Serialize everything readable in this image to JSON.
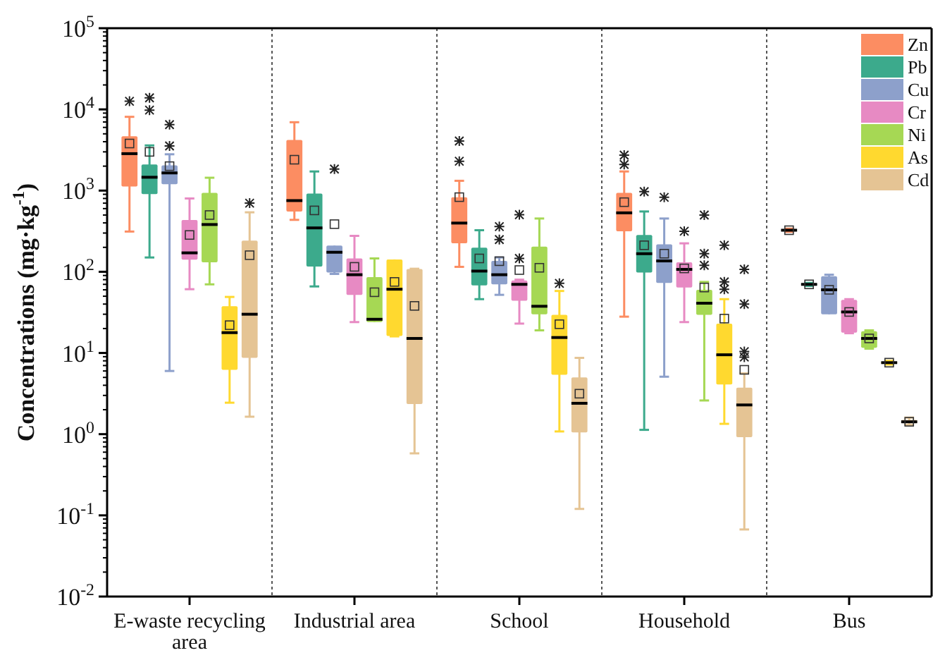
{
  "chart_data": {
    "type": "box",
    "ylabel": "Concentrations (mg·kg$^{-1}$)",
    "categories": [
      "E-waste recycling area",
      "Industrial area",
      "School",
      "Household",
      "Bus"
    ],
    "log": true,
    "ylim": [
      0.01,
      100000
    ],
    "yticks": [
      {
        "value": 0.01,
        "label": "10$^{-2}$"
      },
      {
        "value": 0.1,
        "label": "10$^{-1}$"
      },
      {
        "value": 1,
        "label": "10$^{0}$"
      },
      {
        "value": 10,
        "label": "10$^{1}$"
      },
      {
        "value": 100,
        "label": "10$^{2}$"
      },
      {
        "value": 1000,
        "label": "10$^{3}$"
      },
      {
        "value": 10000,
        "label": "10$^{4}$"
      },
      {
        "value": 100000,
        "label": "10$^{5}$"
      }
    ],
    "legend": "top right",
    "series": [
      {
        "name": "Zn",
        "color": "#fc8d62",
        "boxes": [
          {
            "low": 313,
            "q1": 1120,
            "median": 2850,
            "q3": 4660,
            "high": 8100,
            "mean": 3800,
            "outliers": [
              12600
            ]
          },
          {
            "low": 436,
            "q1": 553,
            "median": 753,
            "q3": 4200,
            "high": 6950,
            "mean": 2400
          },
          {
            "low": 115,
            "q1": 224,
            "median": 398,
            "q3": 826,
            "high": 1320,
            "mean": 830,
            "outliers": [
              2300,
              4080
            ]
          },
          {
            "low": 28,
            "q1": 316,
            "median": 532,
            "q3": 940,
            "high": 1720,
            "mean": 720,
            "outliers": [
              2100,
              2730
            ]
          },
          {
            "low": 310,
            "q1": 318,
            "median": 325,
            "q3": 332,
            "high": 340,
            "mean": 325
          }
        ]
      },
      {
        "name": "Pb",
        "color": "#3caa8c",
        "boxes": [
          {
            "low": 150,
            "q1": 905,
            "median": 1460,
            "q3": 2100,
            "high": 3600,
            "mean": 3000,
            "outliers": [
              9800,
              13900
            ]
          },
          {
            "low": 66,
            "q1": 116,
            "median": 347,
            "q3": 920,
            "high": 1720,
            "mean": 570
          },
          {
            "low": 46,
            "q1": 68,
            "median": 102,
            "q3": 198,
            "high": 325,
            "mean": 146
          },
          {
            "low": 1.13,
            "q1": 98,
            "median": 167,
            "q3": 284,
            "high": 553,
            "mean": 212,
            "outliers": [
              970
            ]
          },
          {
            "low": 67,
            "q1": 69,
            "median": 70,
            "q3": 71,
            "high": 73,
            "mean": 70
          }
        ]
      },
      {
        "name": "Cu",
        "color": "#8da0cb",
        "boxes": [
          {
            "low": 6,
            "q1": 1200,
            "median": 1650,
            "q3": 2050,
            "high": 2800,
            "mean": 2000,
            "outliers": [
              3550,
              6500
            ]
          },
          {
            "low": 94,
            "q1": 98,
            "median": 174,
            "q3": 210,
            "high": 210,
            "mean": 386,
            "outliers": [
              1840
            ]
          },
          {
            "low": 52,
            "q1": 70,
            "median": 92,
            "q3": 136,
            "high": 150,
            "mean": 135,
            "outliers": [
              249,
              360
            ]
          },
          {
            "low": 5.1,
            "q1": 73,
            "median": 136,
            "q3": 218,
            "high": 453,
            "mean": 167,
            "outliers": [
              826
            ]
          },
          {
            "low": 30,
            "q1": 30,
            "median": 60,
            "q3": 88,
            "high": 92,
            "mean": 60
          }
        ]
      },
      {
        "name": "Cr",
        "color": "#e78ac3",
        "boxes": [
          {
            "low": 61,
            "q1": 141,
            "median": 171,
            "q3": 435,
            "high": 800,
            "mean": 284
          },
          {
            "low": 24,
            "q1": 52,
            "median": 92,
            "q3": 146,
            "high": 277,
            "mean": 115
          },
          {
            "low": 23,
            "q1": 44,
            "median": 70,
            "q3": 78,
            "high": 80,
            "mean": 105,
            "outliers": [
              146,
              505
            ]
          },
          {
            "low": 24,
            "q1": 64,
            "median": 107,
            "q3": 131,
            "high": 224,
            "mean": 110,
            "outliers": [
              316
            ]
          },
          {
            "low": 17.5,
            "q1": 17.8,
            "median": 32,
            "q3": 45,
            "high": 46,
            "mean": 32
          }
        ]
      },
      {
        "name": "Ni",
        "color": "#a6d854",
        "boxes": [
          {
            "low": 70,
            "q1": 131,
            "median": 382,
            "q3": 940,
            "high": 1440,
            "mean": 500
          },
          {
            "low": 24,
            "q1": 24,
            "median": 26,
            "q3": 86,
            "high": 146,
            "mean": 56
          },
          {
            "low": 19,
            "q1": 30,
            "median": 37.6,
            "q3": 204,
            "high": 453,
            "mean": 112
          },
          {
            "low": 2.6,
            "q1": 29.5,
            "median": 41,
            "q3": 60,
            "high": 75,
            "mean": 64,
            "outliers": [
              120,
              167,
              500
            ]
          },
          {
            "low": 11.3,
            "q1": 11.6,
            "median": 15.1,
            "q3": 18.5,
            "high": 19,
            "mean": 15.1
          }
        ]
      },
      {
        "name": "As",
        "color": "#ffd92f",
        "boxes": [
          {
            "low": 2.44,
            "q1": 6.2,
            "median": 17.8,
            "q3": 37.6,
            "high": 49,
            "mean": 22
          },
          {
            "low": 16,
            "q1": 16.2,
            "median": 61,
            "q3": 142,
            "high": 142,
            "mean": 75
          },
          {
            "low": 1.08,
            "q1": 5.4,
            "median": 15.5,
            "q3": 29.5,
            "high": 58,
            "mean": 22.6,
            "outliers": [
              72
            ]
          },
          {
            "low": 1.34,
            "q1": 4.1,
            "median": 9.5,
            "q3": 23,
            "high": 46,
            "mean": 26.5,
            "outliers": [
              61,
              75,
              212
            ]
          },
          {
            "low": 7.2,
            "q1": 7.4,
            "median": 7.6,
            "q3": 7.8,
            "high": 8,
            "mean": 7.6
          }
        ]
      },
      {
        "name": "Cd",
        "color": "#e5c494",
        "boxes": [
          {
            "low": 1.64,
            "q1": 8.7,
            "median": 30,
            "q3": 242,
            "high": 540,
            "mean": 160,
            "outliers": [
              700
            ]
          },
          {
            "low": 0.58,
            "q1": 2.35,
            "median": 15.1,
            "q3": 108,
            "high": 109,
            "mean": 38
          },
          {
            "low": 0.12,
            "q1": 1.05,
            "median": 2.4,
            "q3": 5,
            "high": 8.7,
            "mean": 3.15
          },
          {
            "low": 0.067,
            "q1": 0.92,
            "median": 2.29,
            "q3": 3.74,
            "high": 5.6,
            "mean": 6.2,
            "outliers": [
              8.9,
              10.4,
              40,
              107
            ]
          },
          {
            "low": 1.3,
            "q1": 1.36,
            "median": 1.42,
            "q3": 1.5,
            "high": 1.6,
            "mean": 1.42
          }
        ]
      }
    ]
  }
}
